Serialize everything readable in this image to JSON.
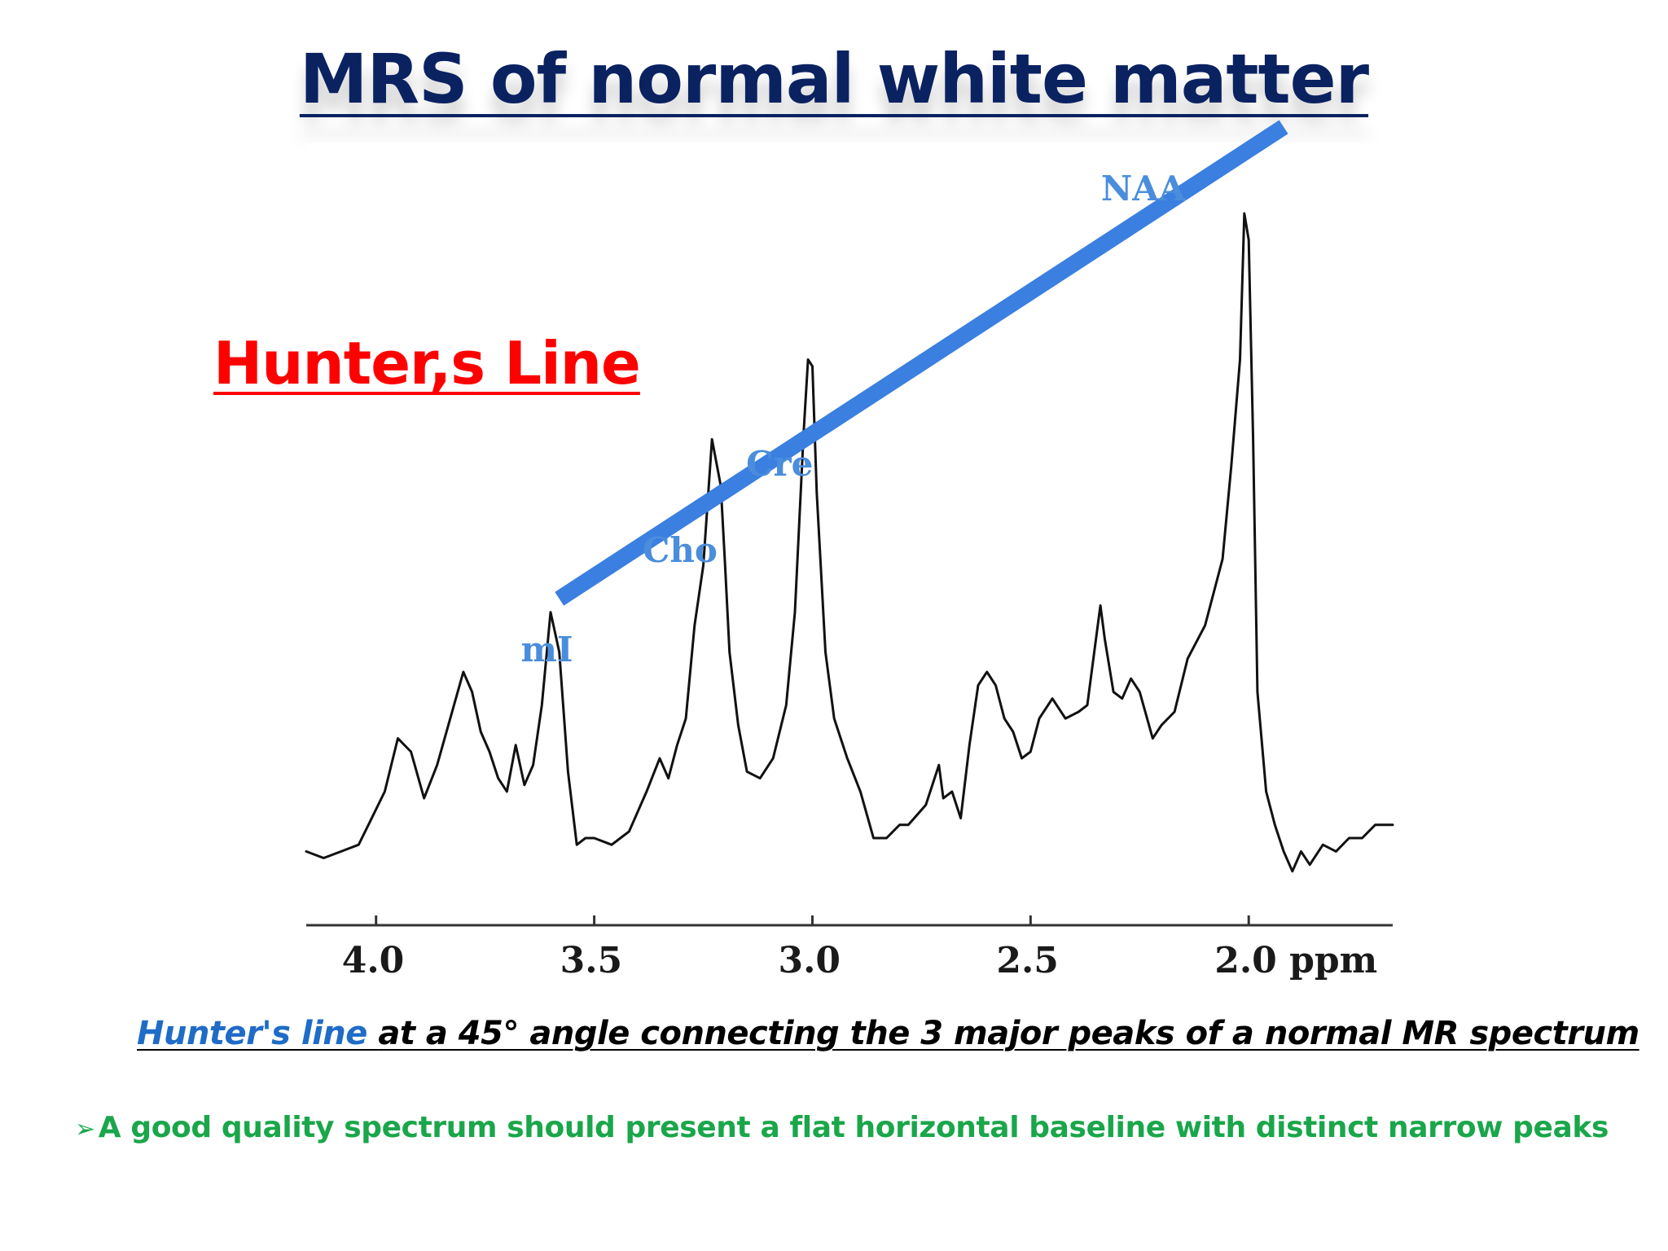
{
  "title": "MRS of normal white matter",
  "annotation_label": "Hunter,s Line",
  "caption": {
    "link_text": "Hunter's line ",
    "rest_text": "at a 45° angle connecting the 3 major peaks of a normal MR spectrum"
  },
  "bullet": {
    "icon": "arrow-bullet-icon",
    "text": "A good quality spectrum should  present a flat horizontal baseline with distinct narrow peaks"
  },
  "colors": {
    "title": "#0b2261",
    "hunter_line": "#3b7fe0",
    "annotation_label": "#ff0000",
    "caption_link": "#1f6cc7",
    "bullet_text": "#1aa64a",
    "peak_labels": "#4a8ddc",
    "spectrum": "#111111"
  },
  "chart_data": {
    "type": "line",
    "xlabel": "ppm",
    "x_reversed": true,
    "xlim": [
      4.16,
      1.67
    ],
    "ylim": [
      0,
      1
    ],
    "grid": false,
    "x_ticks": [
      "4.0",
      "3.5",
      "3.0",
      "2.5",
      "2.0 ppm"
    ],
    "x_tick_values": [
      4.0,
      3.5,
      3.0,
      2.5,
      2.0
    ],
    "series": [
      {
        "x": [
          4.16,
          4.12,
          4.08,
          4.04,
          4.01,
          3.98,
          3.95,
          3.92,
          3.89,
          3.86,
          3.83,
          3.8,
          3.78,
          3.76,
          3.74,
          3.72,
          3.7,
          3.68,
          3.66,
          3.64,
          3.62,
          3.6,
          3.58,
          3.56,
          3.54,
          3.52,
          3.5,
          3.46,
          3.42,
          3.38,
          3.35,
          3.33,
          3.31,
          3.29,
          3.27,
          3.25,
          3.23,
          3.21,
          3.2,
          3.19,
          3.17,
          3.15,
          3.12,
          3.09,
          3.06,
          3.04,
          3.02,
          3.01,
          3.0,
          2.99,
          2.97,
          2.95,
          2.92,
          2.89,
          2.86,
          2.83,
          2.8,
          2.78,
          2.74,
          2.71,
          2.7,
          2.68,
          2.66,
          2.64,
          2.62,
          2.6,
          2.58,
          2.56,
          2.54,
          2.52,
          2.5,
          2.48,
          2.45,
          2.42,
          2.39,
          2.37,
          2.35,
          2.34,
          2.33,
          2.31,
          2.29,
          2.27,
          2.25,
          2.22,
          2.2,
          2.17,
          2.14,
          2.1,
          2.06,
          2.04,
          2.02,
          2.01,
          2.0,
          1.99,
          1.98,
          1.96,
          1.94,
          1.92,
          1.9,
          1.88,
          1.86,
          1.83,
          1.8,
          1.77,
          1.74,
          1.71,
          1.67
        ],
        "y": [
          0.04,
          0.03,
          0.04,
          0.05,
          0.09,
          0.13,
          0.21,
          0.19,
          0.12,
          0.17,
          0.24,
          0.31,
          0.28,
          0.22,
          0.19,
          0.15,
          0.13,
          0.2,
          0.14,
          0.17,
          0.26,
          0.4,
          0.34,
          0.16,
          0.05,
          0.06,
          0.06,
          0.05,
          0.07,
          0.13,
          0.18,
          0.15,
          0.2,
          0.24,
          0.38,
          0.47,
          0.66,
          0.59,
          0.47,
          0.34,
          0.23,
          0.16,
          0.15,
          0.18,
          0.26,
          0.4,
          0.67,
          0.78,
          0.77,
          0.58,
          0.34,
          0.24,
          0.18,
          0.13,
          0.06,
          0.06,
          0.08,
          0.08,
          0.11,
          0.17,
          0.12,
          0.13,
          0.09,
          0.2,
          0.29,
          0.31,
          0.29,
          0.24,
          0.22,
          0.18,
          0.19,
          0.24,
          0.27,
          0.24,
          0.25,
          0.26,
          0.36,
          0.41,
          0.36,
          0.28,
          0.27,
          0.3,
          0.28,
          0.21,
          0.23,
          0.25,
          0.33,
          0.38,
          0.48,
          0.62,
          0.78,
          1.0,
          0.96,
          0.66,
          0.28,
          0.13,
          0.08,
          0.04,
          0.01,
          0.04,
          0.02,
          0.05,
          0.04,
          0.06,
          0.06,
          0.08,
          0.08
        ]
      }
    ],
    "peak_labels": [
      {
        "text": "mI",
        "x": 3.56
      },
      {
        "text": "Cho",
        "x": 3.21
      },
      {
        "text": "Cre",
        "x": 3.01
      },
      {
        "text": "NAA",
        "x": 2.01
      }
    ]
  }
}
